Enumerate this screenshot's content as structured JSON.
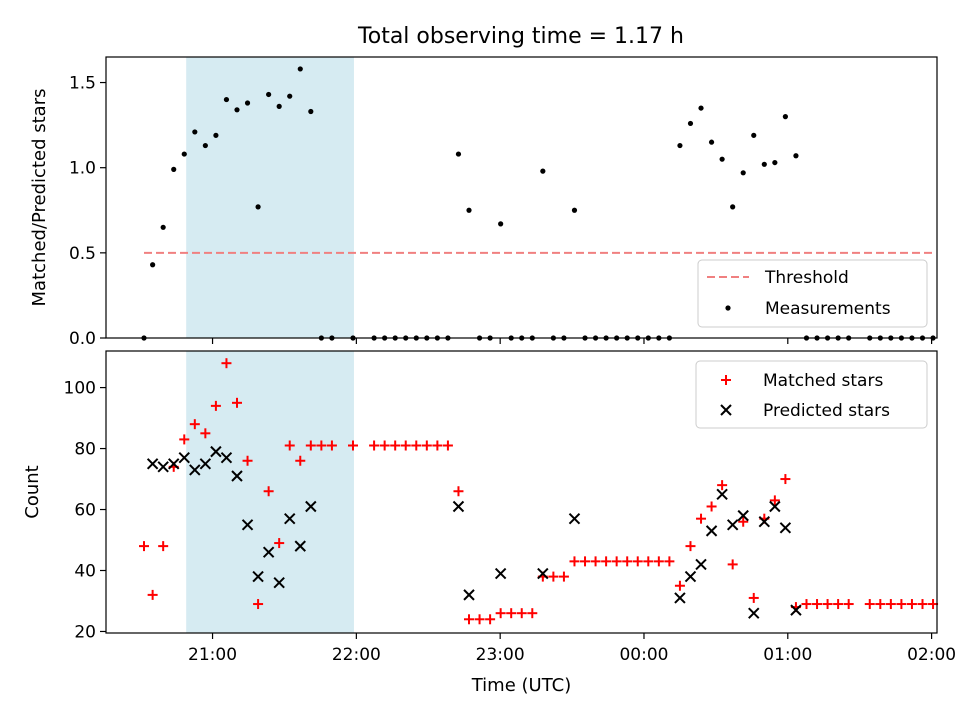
{
  "title": "Total observing time = 1.17 h",
  "colors": {
    "shade": "#add8e6",
    "threshold": "#f08080",
    "measurement": "#000000",
    "matched": "#ff0000",
    "predicted": "#000000"
  },
  "chart_data": [
    {
      "type": "scatter",
      "ylabel": "Matched/Predicted stars",
      "ylim": [
        0,
        1.65
      ],
      "xlim": [
        -3.6,
        326
      ],
      "yticks": [
        0,
        0.5,
        1.0,
        1.5
      ],
      "ytick_labels": [
        "0.0",
        "0.5",
        "1.0",
        "1.5"
      ],
      "x_unit": "minutes after 20:35 UTC",
      "shaded_span": [
        "20:49",
        "21:59"
      ],
      "legend_position": "lower right",
      "threshold": {
        "name": "Threshold",
        "value": 0.5,
        "x_range": [
          -3.6,
          326
        ]
      },
      "series": [
        {
          "name": "Measurements",
          "points": [
            [
              -3.6,
              0
            ],
            [
              0,
              0.43
            ],
            [
              4.4,
              0.65
            ],
            [
              8.8,
              0.99
            ],
            [
              13.2,
              1.08
            ],
            [
              17.6,
              1.21
            ],
            [
              22,
              1.13
            ],
            [
              26.4,
              1.19
            ],
            [
              30.8,
              1.4
            ],
            [
              35.2,
              1.34
            ],
            [
              39.6,
              1.38
            ],
            [
              44,
              0.77
            ],
            [
              48.4,
              1.43
            ],
            [
              52.8,
              1.36
            ],
            [
              57.2,
              1.42
            ],
            [
              61.6,
              1.58
            ],
            [
              66,
              1.33
            ],
            [
              70.4,
              0
            ],
            [
              74.8,
              0
            ],
            [
              83.6,
              0
            ],
            [
              92.4,
              0
            ],
            [
              96.8,
              0
            ],
            [
              101.2,
              0
            ],
            [
              105.6,
              0
            ],
            [
              110,
              0
            ],
            [
              114.4,
              0
            ],
            [
              118.8,
              0
            ],
            [
              123.2,
              0
            ],
            [
              127.6,
              1.08
            ],
            [
              132,
              0.75
            ],
            [
              136.4,
              0
            ],
            [
              140.8,
              0
            ],
            [
              145.2,
              0.67
            ],
            [
              149.6,
              0
            ],
            [
              154,
              0
            ],
            [
              158.4,
              0
            ],
            [
              162.8,
              0.98
            ],
            [
              167.2,
              0
            ],
            [
              171.6,
              0
            ],
            [
              176,
              0.75
            ],
            [
              180.4,
              0
            ],
            [
              184.8,
              0
            ],
            [
              189.2,
              0
            ],
            [
              193.6,
              0
            ],
            [
              198,
              0
            ],
            [
              202.4,
              0
            ],
            [
              206.8,
              0
            ],
            [
              211.2,
              0
            ],
            [
              215.6,
              0
            ],
            [
              220,
              1.13
            ],
            [
              224.4,
              1.26
            ],
            [
              228.8,
              1.35
            ],
            [
              233.2,
              1.15
            ],
            [
              237.6,
              1.05
            ],
            [
              242,
              0.77
            ],
            [
              246.4,
              0.97
            ],
            [
              250.8,
              1.19
            ],
            [
              255.2,
              1.02
            ],
            [
              259.6,
              1.03
            ],
            [
              264,
              1.3
            ],
            [
              268.4,
              1.07
            ],
            [
              272.8,
              0
            ],
            [
              277.2,
              0
            ],
            [
              281.6,
              0
            ],
            [
              286,
              0
            ],
            [
              290.4,
              0
            ],
            [
              299.2,
              0
            ],
            [
              303.6,
              0
            ],
            [
              308,
              0
            ],
            [
              312.4,
              0
            ],
            [
              316.8,
              0
            ],
            [
              321.2,
              0
            ],
            [
              325.6,
              0
            ]
          ]
        }
      ]
    },
    {
      "type": "scatter",
      "xlabel": "Time (UTC)",
      "ylabel": "Count",
      "ylim": [
        19.5,
        112
      ],
      "xlim": [
        -3.6,
        326
      ],
      "yticks": [
        20,
        40,
        60,
        80,
        100
      ],
      "ytick_labels": [
        "20",
        "40",
        "60",
        "80",
        "100"
      ],
      "xticks": [
        25,
        85,
        145,
        205,
        265,
        325
      ],
      "xtick_labels": [
        "21:00",
        "22:00",
        "23:00",
        "00:00",
        "01:00",
        "02:00"
      ],
      "x_unit": "minutes after 20:35 UTC",
      "shaded_span": [
        "20:49",
        "21:59"
      ],
      "legend_position": "upper right",
      "series": [
        {
          "name": "Matched stars",
          "marker": "plus",
          "points": [
            [
              -3.6,
              48
            ],
            [
              0,
              32
            ],
            [
              4.4,
              48
            ],
            [
              8.8,
              74
            ],
            [
              13.2,
              83
            ],
            [
              17.6,
              88
            ],
            [
              22,
              85
            ],
            [
              26.4,
              94
            ],
            [
              30.8,
              108
            ],
            [
              35.2,
              95
            ],
            [
              39.6,
              76
            ],
            [
              44,
              29
            ],
            [
              48.4,
              66
            ],
            [
              52.8,
              49
            ],
            [
              57.2,
              81
            ],
            [
              61.6,
              76
            ],
            [
              66,
              81
            ],
            [
              70.4,
              81
            ],
            [
              74.8,
              81
            ],
            [
              83.6,
              81
            ],
            [
              92.4,
              81
            ],
            [
              96.8,
              81
            ],
            [
              101.2,
              81
            ],
            [
              105.6,
              81
            ],
            [
              110,
              81
            ],
            [
              114.4,
              81
            ],
            [
              118.8,
              81
            ],
            [
              123.2,
              81
            ],
            [
              127.6,
              66
            ],
            [
              132,
              24
            ],
            [
              136.4,
              24
            ],
            [
              140.8,
              24
            ],
            [
              145.2,
              26
            ],
            [
              149.6,
              26
            ],
            [
              154,
              26
            ],
            [
              158.4,
              26
            ],
            [
              162.8,
              38
            ],
            [
              167.2,
              38
            ],
            [
              171.6,
              38
            ],
            [
              176,
              43
            ],
            [
              180.4,
              43
            ],
            [
              184.8,
              43
            ],
            [
              189.2,
              43
            ],
            [
              193.6,
              43
            ],
            [
              198,
              43
            ],
            [
              202.4,
              43
            ],
            [
              206.8,
              43
            ],
            [
              211.2,
              43
            ],
            [
              215.6,
              43
            ],
            [
              220,
              35
            ],
            [
              224.4,
              48
            ],
            [
              228.8,
              57
            ],
            [
              233.2,
              61
            ],
            [
              237.6,
              68
            ],
            [
              242,
              42
            ],
            [
              246.4,
              56
            ],
            [
              250.8,
              31
            ],
            [
              255.2,
              57
            ],
            [
              259.6,
              63
            ],
            [
              264,
              70
            ],
            [
              268.4,
              28
            ],
            [
              272.8,
              29
            ],
            [
              277.2,
              29
            ],
            [
              281.6,
              29
            ],
            [
              286,
              29
            ],
            [
              290.4,
              29
            ],
            [
              299.2,
              29
            ],
            [
              303.6,
              29
            ],
            [
              308,
              29
            ],
            [
              312.4,
              29
            ],
            [
              316.8,
              29
            ],
            [
              321.2,
              29
            ],
            [
              325.6,
              29
            ]
          ]
        },
        {
          "name": "Predicted stars",
          "marker": "x",
          "points": [
            [
              0,
              75
            ],
            [
              4.4,
              74
            ],
            [
              8.8,
              75
            ],
            [
              13.2,
              77
            ],
            [
              17.6,
              73
            ],
            [
              22,
              75
            ],
            [
              26.4,
              79
            ],
            [
              30.8,
              77
            ],
            [
              35.2,
              71
            ],
            [
              39.6,
              55
            ],
            [
              44,
              38
            ],
            [
              48.4,
              46
            ],
            [
              52.8,
              36
            ],
            [
              57.2,
              57
            ],
            [
              61.6,
              48
            ],
            [
              66,
              61
            ],
            [
              127.6,
              61
            ],
            [
              132,
              32
            ],
            [
              145.2,
              39
            ],
            [
              162.8,
              39
            ],
            [
              176,
              57
            ],
            [
              220,
              31
            ],
            [
              224.4,
              38
            ],
            [
              228.8,
              42
            ],
            [
              233.2,
              53
            ],
            [
              237.6,
              65
            ],
            [
              242,
              55
            ],
            [
              246.4,
              58
            ],
            [
              250.8,
              26
            ],
            [
              255.2,
              56
            ],
            [
              259.6,
              61
            ],
            [
              264,
              54
            ],
            [
              268.4,
              27
            ]
          ]
        }
      ]
    }
  ]
}
